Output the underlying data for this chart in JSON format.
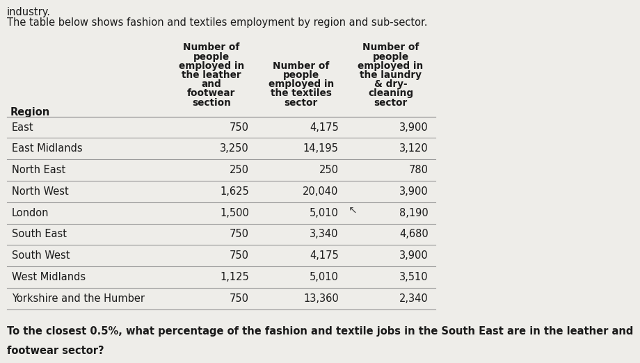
{
  "top_text": "industry.",
  "title_text": "The table below shows fashion and textiles employment by region and sub-sector.",
  "rows": [
    [
      "East",
      "750",
      "4,175",
      "3,900"
    ],
    [
      "East Midlands",
      "3,250",
      "14,195",
      "3,120"
    ],
    [
      "North East",
      "250",
      "250",
      "780"
    ],
    [
      "North West",
      "1,625",
      "20,040",
      "3,900"
    ],
    [
      "London",
      "1,500",
      "5,010",
      "8,190"
    ],
    [
      "South East",
      "750",
      "3,340",
      "4,680"
    ],
    [
      "South West",
      "750",
      "4,175",
      "3,900"
    ],
    [
      "West Midlands",
      "1,125",
      "5,010",
      "3,510"
    ],
    [
      "Yorkshire and the Humber",
      "750",
      "13,360",
      "2,340"
    ]
  ],
  "question_line1": "To the closest 0.5%, what percentage of the fashion and textile jobs in the South East are in the leather and",
  "question_line2": "footwear sector?",
  "bg_color": "#eeede9",
  "text_color": "#1a1a1a",
  "line_color": "#999999",
  "hdr1_lines": [
    "Number of",
    "people",
    "employed in",
    "the leather",
    "and employed in",
    "footwear  the textiles",
    "section       sector"
  ],
  "hdr2_extra_lines": [
    "Number of",
    "people",
    "employed in",
    "the laundry",
    "& dry-",
    "cleaning",
    "sector"
  ],
  "hdr_shared_line3": "Number of",
  "hdr_shared_line4": "people"
}
